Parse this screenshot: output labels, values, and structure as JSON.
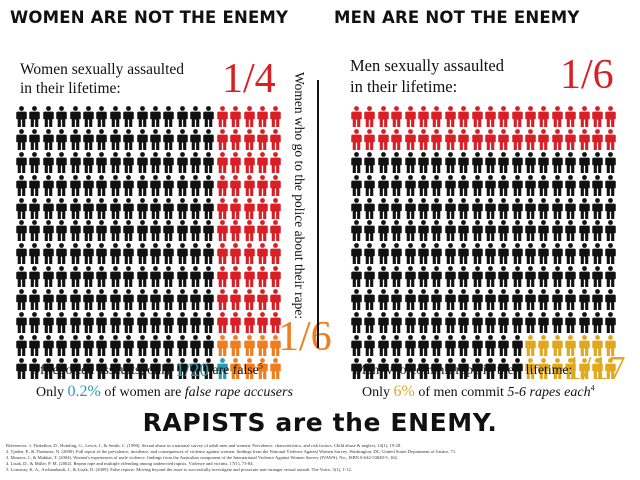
{
  "left": {
    "header": "WOMEN ARE NOT THE ENEMY",
    "assault_label_1": "Women sexually assaulted",
    "assault_label_2": "in their lifetime:",
    "assault_fraction": "1/4",
    "police_label": "Women who go to the police about their rape:",
    "police_fraction": "1/6",
    "false_line_prefix": "Of reported assaults, only",
    "false_fraction": "1/20",
    "false_line_suffix": "are false",
    "false_ref": "5",
    "accuser_prefix": "Only",
    "accuser_percent": "0.2%",
    "accuser_suffix_plain": "of women are",
    "accuser_suffix_italic": "false rape accusers"
  },
  "right": {
    "header": "MEN ARE NOT THE ENEMY",
    "assault_label_1": "Men sexually assaulted",
    "assault_label_2": "in their lifetime:",
    "assault_fraction": "1/6",
    "rape_label": "Men who commit rape in their lifetime:",
    "rape_fraction": "1/17",
    "repeat_prefix": "Only",
    "repeat_percent": "6%",
    "repeat_middle": "of men commit",
    "repeat_italic": "5-6 rapes each",
    "repeat_ref": "4"
  },
  "bottom_title": "RAPISTS are the ENEMY.",
  "references": [
    "References: 1. Finkelhor, D., Hotaling, G., Lewis, I., & Smith, C. (1990). Sexual abuse in a national survey of adult men and women: Prevalence, characteristics, and risk factors. Child abuse & neglect, 14(1), 19-28.",
    "2. Tjaden, P., & Thoennes, N. (2000). Full report of the prevalence, incidence, and consequences of violence against women: findings from the National Violence Against Women Survey. Washington, DC: United States Department of Justice, 71.",
    "3. Mouzos, J., & Makkai, T. (2004). Women's experiences of male violence: findings from the Australian component of the International Violence Against Women Survey (IVAWS). No.; ISBN 0-642-53849-5, 162.",
    "4. Lisak, D., & Miller, P. M. (2002). Repeat rape and multiple offending among undetected rapists. Violence and victims, 17(1), 73-84.",
    "5. Lonsway, K. A., Archambault, J., & Lisak, D. (2009). False reports: Moving beyond the issue to successfully investigate and prosecute non-stranger sexual assault. The Voice, 3(1), 1-12."
  ],
  "colors": {
    "black": "#111111",
    "red": "#d81f26",
    "orange": "#f07d1e",
    "gold": "#e1a81d",
    "teal": "#2a9aaf"
  },
  "icon_grid": {
    "left": {
      "icon": "person-icon",
      "rows": 12,
      "columns": 20,
      "assaulted_fraction": 0.25,
      "reported_fraction_of_assaulted": 0.167,
      "false_report_count": 1
    },
    "right": {
      "icon": "person-icon",
      "rows": 12,
      "columns": 20,
      "assaulted_fraction": 0.167,
      "rapist_fraction": 0.059
    }
  }
}
